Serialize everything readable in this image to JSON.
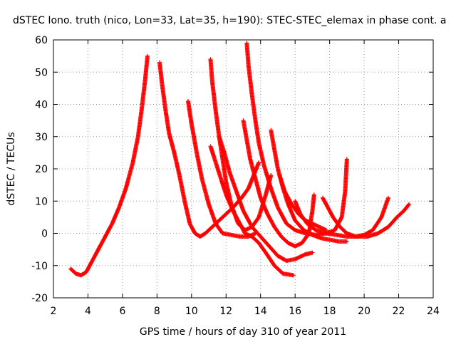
{
  "chart_data": {
    "type": "scatter",
    "title": "dSTEC Iono. truth (nico, Lon=33, Lat=35, h=190): STEC-STEC_elemax in phase cont. a",
    "xlabel": "GPS time / hours of day 310 of year 2011",
    "ylabel": "dSTEC  / TECUs",
    "xlim": [
      2,
      24
    ],
    "ylim": [
      -20,
      60
    ],
    "x_ticks": [
      2,
      4,
      6,
      8,
      10,
      12,
      14,
      16,
      18,
      20,
      22,
      24
    ],
    "y_ticks": [
      -20,
      -10,
      0,
      10,
      20,
      30,
      40,
      50,
      60
    ],
    "grid": true,
    "marker": "plus",
    "color": "#ff0000",
    "series": [
      {
        "points": [
          [
            3.0,
            -11
          ],
          [
            3.3,
            -12.5
          ],
          [
            3.6,
            -13
          ],
          [
            3.9,
            -12
          ],
          [
            4.2,
            -9
          ],
          [
            4.6,
            -5
          ],
          [
            5.0,
            -1
          ],
          [
            5.4,
            3
          ],
          [
            5.8,
            8
          ],
          [
            6.2,
            14
          ],
          [
            6.6,
            22
          ],
          [
            6.9,
            30
          ],
          [
            7.1,
            38
          ],
          [
            7.3,
            47
          ],
          [
            7.45,
            55
          ]
        ]
      },
      {
        "points": [
          [
            8.15,
            53
          ],
          [
            8.3,
            46
          ],
          [
            8.5,
            38
          ],
          [
            8.7,
            31
          ],
          [
            9.0,
            25
          ],
          [
            9.3,
            18
          ],
          [
            9.6,
            10
          ],
          [
            9.9,
            3
          ],
          [
            10.2,
            0
          ],
          [
            10.5,
            -1
          ],
          [
            10.8,
            0
          ],
          [
            11.2,
            2
          ],
          [
            11.8,
            5
          ],
          [
            12.4,
            8
          ],
          [
            12.9,
            11
          ],
          [
            13.3,
            14
          ],
          [
            13.6,
            18
          ],
          [
            13.9,
            22
          ]
        ]
      },
      {
        "points": [
          [
            9.8,
            41
          ],
          [
            10.0,
            34
          ],
          [
            10.3,
            25
          ],
          [
            10.6,
            17
          ],
          [
            11.0,
            9
          ],
          [
            11.4,
            3
          ],
          [
            11.8,
            0
          ],
          [
            12.3,
            -0.5
          ],
          [
            12.8,
            -1
          ],
          [
            13.3,
            -1
          ],
          [
            13.7,
            0
          ]
        ]
      },
      {
        "points": [
          [
            11.1,
            54
          ],
          [
            11.2,
            47
          ],
          [
            11.4,
            38
          ],
          [
            11.6,
            30
          ],
          [
            11.8,
            23
          ],
          [
            12.0,
            16
          ],
          [
            12.3,
            9
          ],
          [
            12.7,
            3
          ],
          [
            13.1,
            1
          ],
          [
            13.5,
            2
          ],
          [
            13.9,
            5
          ],
          [
            14.3,
            12
          ],
          [
            14.6,
            18
          ]
        ]
      },
      {
        "points": [
          [
            11.1,
            27
          ],
          [
            11.4,
            22
          ],
          [
            11.7,
            17
          ],
          [
            12.0,
            12
          ],
          [
            12.4,
            7
          ],
          [
            12.8,
            3
          ],
          [
            13.1,
            0
          ],
          [
            13.5,
            -1
          ],
          [
            13.9,
            -3
          ],
          [
            14.3,
            -6
          ],
          [
            14.8,
            -10
          ],
          [
            15.3,
            -12.5
          ],
          [
            15.9,
            -13
          ]
        ]
      },
      {
        "points": [
          [
            11.6,
            30
          ],
          [
            11.9,
            25
          ],
          [
            12.2,
            19
          ],
          [
            12.6,
            13
          ],
          [
            13.0,
            7
          ],
          [
            13.5,
            2
          ],
          [
            14.0,
            -1
          ],
          [
            14.5,
            -4
          ],
          [
            15.0,
            -7
          ],
          [
            15.5,
            -8.5
          ],
          [
            16.0,
            -8
          ],
          [
            16.6,
            -6.5
          ],
          [
            17.0,
            -6
          ]
        ]
      },
      {
        "points": [
          [
            13.0,
            35
          ],
          [
            13.2,
            29
          ],
          [
            13.4,
            23
          ],
          [
            13.7,
            17
          ],
          [
            14.0,
            11
          ],
          [
            14.4,
            6
          ],
          [
            14.8,
            2
          ],
          [
            15.2,
            -1
          ],
          [
            15.6,
            -3
          ],
          [
            16.0,
            -4
          ],
          [
            16.4,
            -3
          ],
          [
            16.8,
            0
          ],
          [
            17.0,
            7
          ],
          [
            17.1,
            12
          ]
        ]
      },
      {
        "points": [
          [
            13.2,
            59
          ],
          [
            13.3,
            52
          ],
          [
            13.5,
            43
          ],
          [
            13.7,
            35
          ],
          [
            13.9,
            28
          ],
          [
            14.2,
            21
          ],
          [
            14.6,
            14
          ],
          [
            15.0,
            8
          ],
          [
            15.5,
            3
          ],
          [
            16.0,
            1
          ],
          [
            16.6,
            0
          ],
          [
            17.2,
            -0.5
          ],
          [
            17.8,
            0
          ],
          [
            18.3,
            1
          ],
          [
            18.7,
            5
          ],
          [
            18.9,
            13
          ],
          [
            19.0,
            23
          ]
        ]
      },
      {
        "points": [
          [
            14.6,
            32
          ],
          [
            14.8,
            26
          ],
          [
            15.0,
            20
          ],
          [
            15.3,
            14
          ],
          [
            15.6,
            9
          ],
          [
            16.0,
            4
          ],
          [
            16.5,
            1
          ],
          [
            17.0,
            -0.5
          ],
          [
            17.5,
            -1.5
          ],
          [
            18.0,
            -2
          ],
          [
            18.5,
            -2.5
          ],
          [
            19.0,
            -2.5
          ]
        ]
      },
      {
        "points": [
          [
            15.1,
            18
          ],
          [
            15.4,
            13
          ],
          [
            15.8,
            9
          ],
          [
            16.2,
            6
          ],
          [
            16.6,
            4
          ],
          [
            17.0,
            3
          ],
          [
            17.4,
            2
          ],
          [
            17.8,
            1
          ]
        ]
      },
      {
        "points": [
          [
            17.6,
            11
          ],
          [
            17.9,
            8
          ],
          [
            18.2,
            5
          ],
          [
            18.6,
            2
          ],
          [
            19.0,
            0
          ],
          [
            19.5,
            -1
          ],
          [
            20.0,
            -0.5
          ],
          [
            20.5,
            1
          ],
          [
            21.0,
            5
          ],
          [
            21.4,
            11
          ]
        ]
      },
      {
        "points": [
          [
            16.0,
            10
          ],
          [
            16.3,
            6
          ],
          [
            16.7,
            3
          ],
          [
            17.2,
            1
          ],
          [
            17.8,
            0
          ],
          [
            18.4,
            -0.5
          ],
          [
            19.0,
            -1
          ],
          [
            19.6,
            -1
          ],
          [
            20.2,
            -1
          ],
          [
            20.8,
            0
          ],
          [
            21.4,
            2
          ],
          [
            21.9,
            5
          ],
          [
            22.3,
            7
          ],
          [
            22.6,
            9
          ]
        ]
      }
    ]
  }
}
